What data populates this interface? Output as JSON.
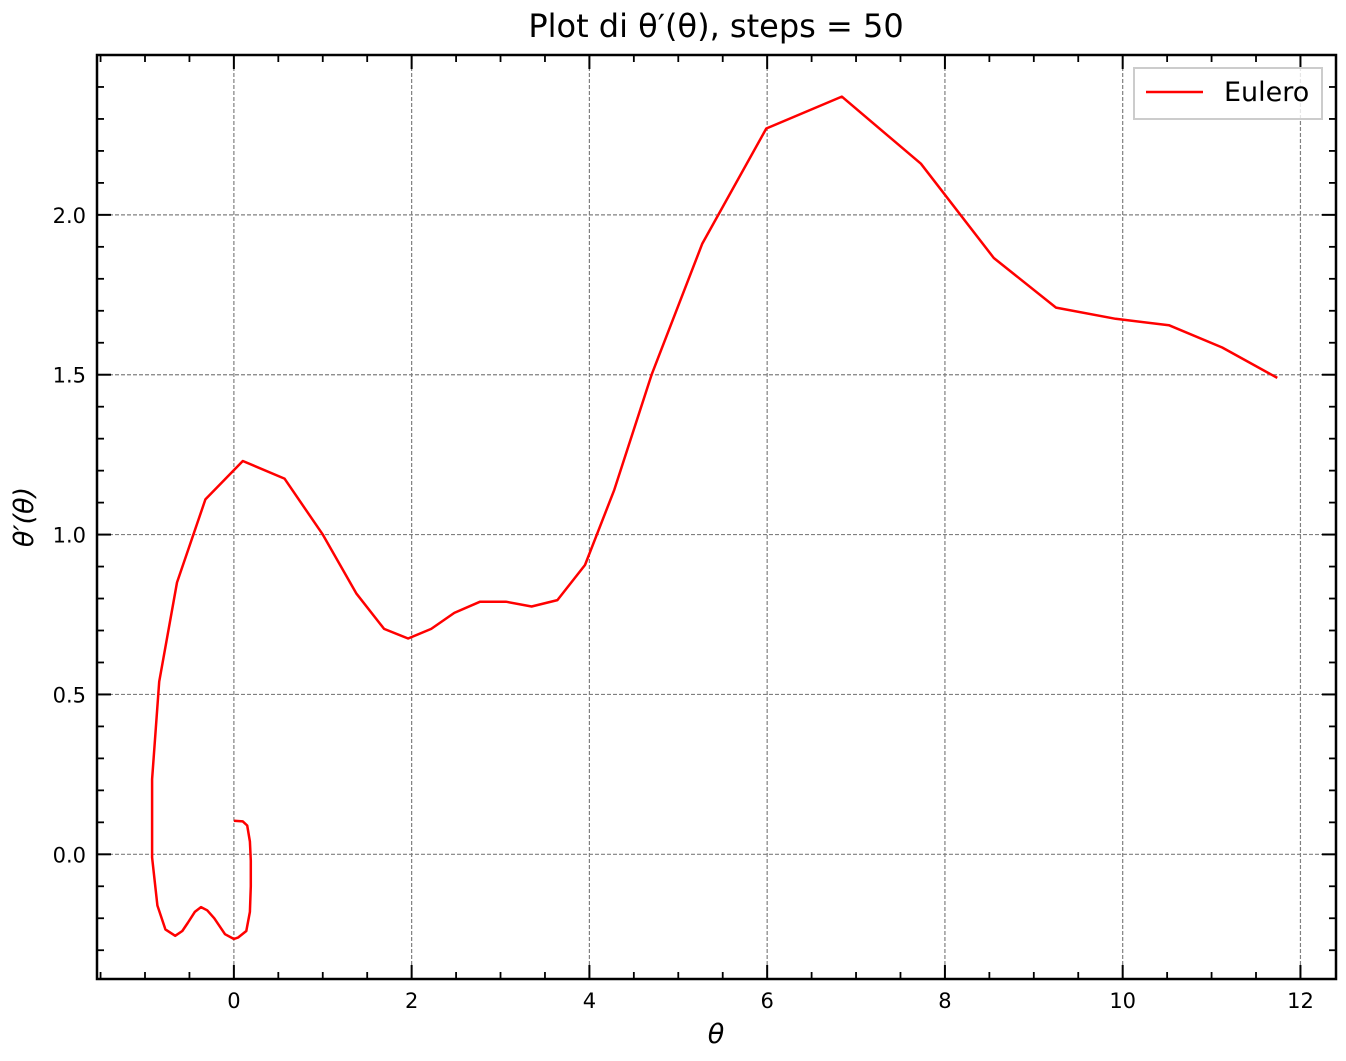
{
  "chart_data": {
    "type": "line",
    "title": "Plot di θ′(θ), steps = 50",
    "xlabel": "θ",
    "ylabel": "θ′(θ)",
    "xlim": [
      -1.54,
      12.4
    ],
    "ylim": [
      -0.39,
      2.5
    ],
    "x_ticks": [
      0,
      2,
      4,
      6,
      8,
      10,
      12
    ],
    "y_ticks": [
      0.0,
      0.5,
      1.0,
      1.5,
      2.0
    ],
    "x_tick_labels": [
      "0",
      "2",
      "4",
      "6",
      "8",
      "10",
      "12"
    ],
    "y_tick_labels": [
      "0.0",
      "0.5",
      "1.0",
      "1.5",
      "2.0"
    ],
    "grid": true,
    "legend": {
      "position": "top-right"
    },
    "series": [
      {
        "name": "Eulero",
        "color": "#ff0000",
        "x": [
          0.0,
          0.1,
          0.15,
          0.18,
          0.19,
          0.19,
          0.18,
          0.14,
          0.05,
          0.0,
          -0.1,
          -0.22,
          -0.3,
          -0.37,
          -0.44,
          -0.52,
          -0.58,
          -0.66,
          -0.77,
          -0.86,
          -0.92,
          -0.92,
          -0.92,
          -0.84,
          -0.64,
          -0.32,
          0.1,
          0.57,
          1.0,
          1.38,
          1.69,
          1.96,
          2.22,
          2.48,
          2.77,
          3.06,
          3.35,
          3.64,
          3.95,
          4.28,
          4.7,
          5.27,
          5.99,
          6.84,
          7.73,
          8.55,
          9.25,
          9.92,
          10.52,
          11.12,
          11.74
        ],
        "y": [
          0.105,
          0.103,
          0.09,
          0.04,
          -0.02,
          -0.1,
          -0.18,
          -0.24,
          -0.26,
          -0.265,
          -0.25,
          -0.2,
          -0.175,
          -0.165,
          -0.18,
          -0.215,
          -0.24,
          -0.255,
          -0.235,
          -0.16,
          -0.01,
          0.08,
          0.235,
          0.54,
          0.85,
          1.11,
          1.23,
          1.175,
          1.0,
          0.815,
          0.705,
          0.675,
          0.705,
          0.755,
          0.79,
          0.79,
          0.775,
          0.795,
          0.905,
          1.14,
          1.5,
          1.91,
          2.27,
          2.37,
          2.16,
          1.865,
          1.71,
          1.675,
          1.655,
          1.585,
          1.49
        ]
      }
    ]
  }
}
